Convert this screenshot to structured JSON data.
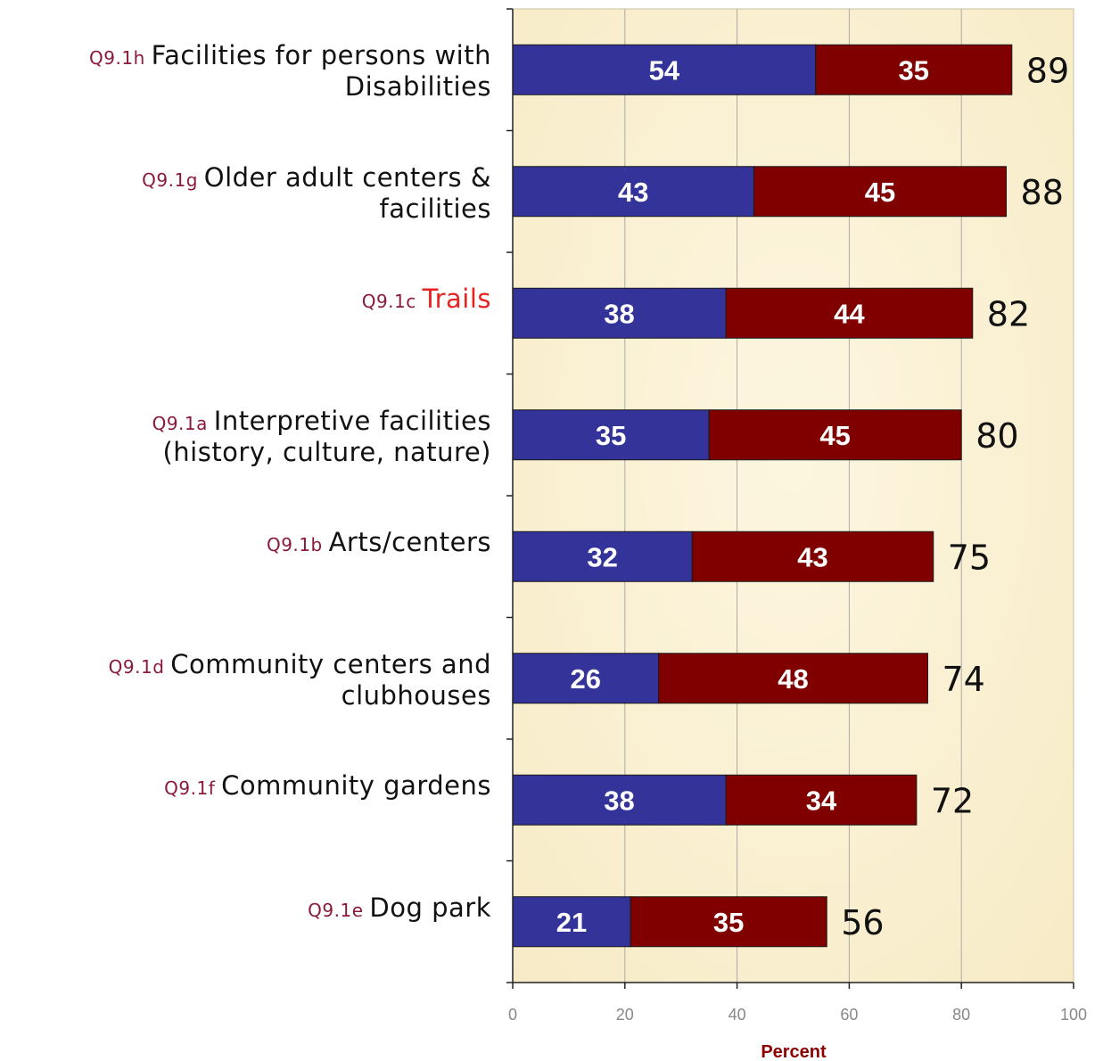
{
  "chart_data": {
    "type": "bar",
    "orientation": "horizontal",
    "stacked": true,
    "categories": [
      {
        "code": "Q9.1h",
        "label": "Facilities for persons with",
        "label2": "Disabilities"
      },
      {
        "code": "Q9.1g",
        "label": "Older adult centers &",
        "label2": "facilities"
      },
      {
        "code": "Q9.1c",
        "label": "Trails",
        "label2": ""
      },
      {
        "code": "Q9.1a",
        "label": "Interpretive facilities",
        "label2": "(history, culture, nature)"
      },
      {
        "code": "Q9.1b",
        "label": "Arts/centers",
        "label2": ""
      },
      {
        "code": "Q9.1d",
        "label": "Community centers and",
        "label2": "clubhouses"
      },
      {
        "code": "Q9.1f",
        "label": "Community gardens",
        "label2": ""
      },
      {
        "code": "Q9.1e",
        "label": "Dog park",
        "label2": ""
      }
    ],
    "series": [
      {
        "color": "#333399",
        "values": [
          54,
          43,
          38,
          35,
          32,
          26,
          38,
          21
        ]
      },
      {
        "color": "#800000",
        "values": [
          35,
          45,
          44,
          45,
          43,
          48,
          34,
          35
        ]
      }
    ],
    "totals": [
      89,
      88,
      82,
      80,
      75,
      74,
      72,
      56
    ],
    "xlabel": "Percent",
    "xlim": [
      0,
      100
    ],
    "xticks": [
      0,
      20,
      40,
      60,
      80,
      100
    ],
    "highlight_category": "Trails",
    "colors": {
      "plot_background": "#fbf2d8",
      "code_text": "#8b1a3a",
      "highlight_text": "#e8231f",
      "axis_title": "#8b0000",
      "tick_text": "#888888",
      "gridline": "#aaaaaa"
    }
  }
}
